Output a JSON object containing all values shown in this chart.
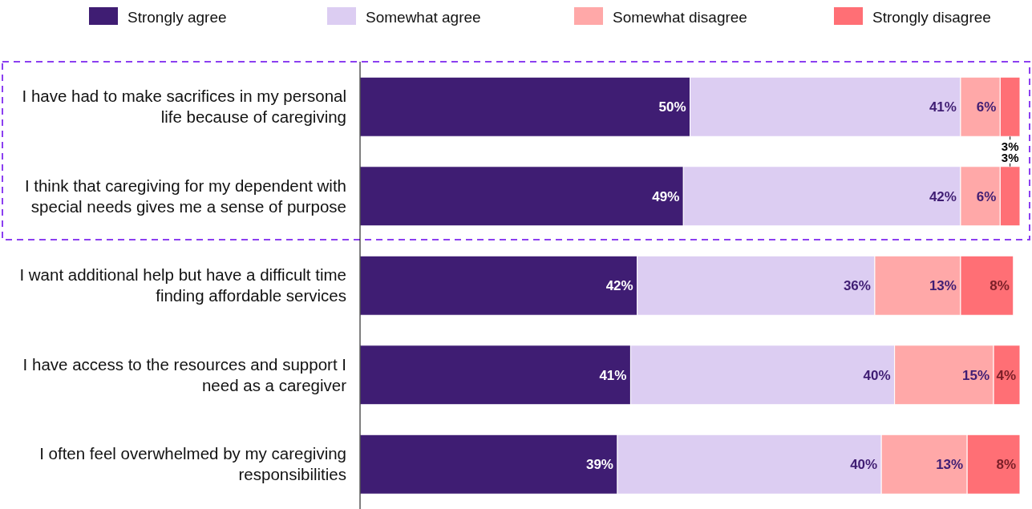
{
  "chart_data": {
    "type": "bar",
    "orientation": "horizontal",
    "stacked": true,
    "legend": "top",
    "tick_labels": "y",
    "categories": [
      "I have had to make sacrifices in my personal life because of caregiving",
      "I think that caregiving for my dependent with special needs gives me a sense of purpose",
      "I want additional help but have a difficult time finding affordable services",
      "I have access to the resources and support I need as a caregiver",
      "I often feel overwhelmed by my caregiving responsibilities"
    ],
    "series": [
      {
        "name": "Strongly agree",
        "color": "#3f1d73",
        "values": [
          50,
          49,
          42,
          41,
          39
        ],
        "value_labels": [
          "50%",
          "49%",
          "42%",
          "41%",
          "39%"
        ]
      },
      {
        "name": "Somewhat agree",
        "color": "#dccdf2",
        "values": [
          41,
          42,
          36,
          40,
          40
        ],
        "value_labels": [
          "41%",
          "42%",
          "36%",
          "40%",
          "40%"
        ]
      },
      {
        "name": "Somewhat disagree",
        "color": "#ffa8a8",
        "values": [
          6,
          6,
          13,
          15,
          13
        ],
        "value_labels": [
          "6%",
          "6%",
          "13%",
          "15%",
          "13%"
        ]
      },
      {
        "name": "Strongly disagree",
        "color": "#ff6f75",
        "values": [
          3,
          3,
          8,
          4,
          8
        ],
        "value_labels": [
          "3%",
          "3%",
          "8%",
          "4%",
          "8%"
        ]
      }
    ]
  }
}
